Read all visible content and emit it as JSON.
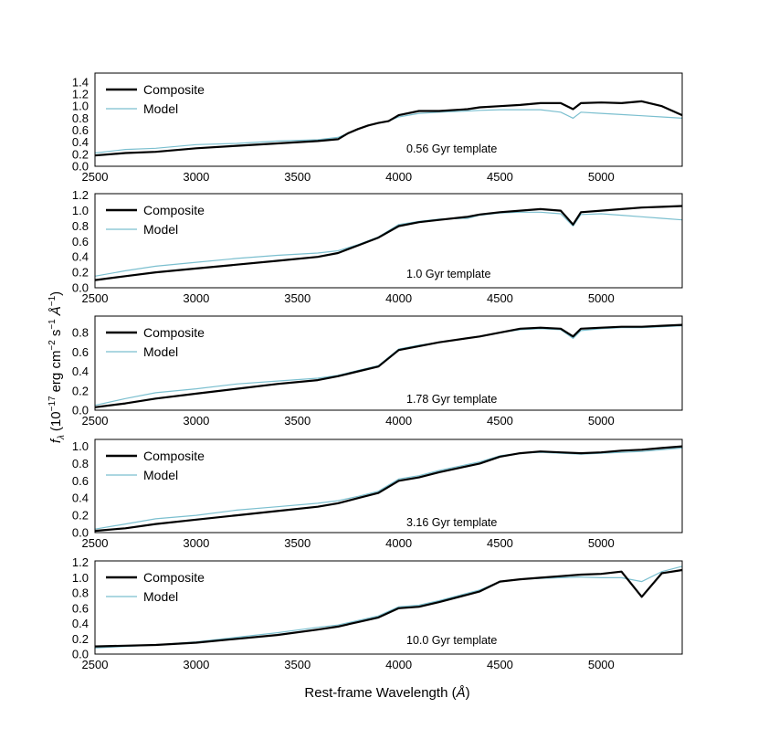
{
  "figure": {
    "xlabel_prefix": "Rest-frame Wavelength (",
    "xlabel_unit": "Å",
    "xlabel_suffix": ")",
    "ylabel_f": "f",
    "ylabel_sub": "λ",
    "ylabel_open": "(10",
    "ylabel_exp1": "−17",
    "ylabel_mid": "erg cm",
    "ylabel_exp2": "−2",
    "ylabel_s": "s",
    "ylabel_exp3": "−1",
    "ylabel_unit": "Å",
    "ylabel_exp4": "−1",
    "ylabel_close": ")"
  },
  "colors": {
    "composite": "#000000",
    "model": "#7bbfcf"
  },
  "chart_data": [
    {
      "type": "line",
      "annotation": "0.56 Gyr template",
      "xlim": [
        2500,
        5400
      ],
      "ylim": [
        0,
        1.55
      ],
      "x_ticks": [
        2500,
        3000,
        3500,
        4000,
        4500,
        5000
      ],
      "y_ticks": [
        "0.0",
        "0.2",
        "0.4",
        "0.6",
        "0.8",
        "1.0",
        "1.2",
        "1.4"
      ],
      "legend": "upper-left",
      "x": [
        2500,
        2650,
        2800,
        3000,
        3200,
        3400,
        3600,
        3700,
        3750,
        3800,
        3850,
        3900,
        3950,
        4000,
        4100,
        4200,
        4340,
        4400,
        4500,
        4600,
        4700,
        4800,
        4861,
        4900,
        5000,
        5100,
        5200,
        5300,
        5400
      ],
      "series": [
        {
          "name": "Composite",
          "values": [
            0.18,
            0.22,
            0.24,
            0.3,
            0.34,
            0.38,
            0.42,
            0.45,
            0.55,
            0.62,
            0.68,
            0.72,
            0.75,
            0.85,
            0.92,
            0.92,
            0.95,
            0.98,
            1.0,
            1.02,
            1.05,
            1.05,
            0.95,
            1.05,
            1.06,
            1.05,
            1.08,
            1.0,
            0.85
          ]
        },
        {
          "name": "Model",
          "values": [
            0.22,
            0.28,
            0.3,
            0.36,
            0.38,
            0.42,
            0.44,
            0.48,
            0.55,
            0.62,
            0.68,
            0.72,
            0.75,
            0.82,
            0.88,
            0.9,
            0.92,
            0.93,
            0.94,
            0.94,
            0.94,
            0.9,
            0.8,
            0.9,
            0.88,
            0.86,
            0.84,
            0.82,
            0.8
          ]
        }
      ]
    },
    {
      "type": "line",
      "annotation": "1.0 Gyr template",
      "xlim": [
        2500,
        5400
      ],
      "ylim": [
        0,
        1.22
      ],
      "x_ticks": [
        2500,
        3000,
        3500,
        4000,
        4500,
        5000
      ],
      "y_ticks": [
        "0.0",
        "0.2",
        "0.4",
        "0.6",
        "0.8",
        "1.0",
        "1.2"
      ],
      "legend": "upper-left",
      "x": [
        2500,
        2650,
        2800,
        3000,
        3200,
        3400,
        3600,
        3700,
        3800,
        3900,
        4000,
        4100,
        4200,
        4340,
        4400,
        4500,
        4600,
        4700,
        4800,
        4861,
        4900,
        5000,
        5100,
        5200,
        5300,
        5400
      ],
      "series": [
        {
          "name": "Composite",
          "values": [
            0.1,
            0.15,
            0.2,
            0.25,
            0.3,
            0.35,
            0.4,
            0.45,
            0.55,
            0.65,
            0.8,
            0.85,
            0.88,
            0.92,
            0.95,
            0.98,
            1.0,
            1.02,
            1.0,
            0.82,
            0.98,
            1.0,
            1.02,
            1.04,
            1.05,
            1.06
          ]
        },
        {
          "name": "Model",
          "values": [
            0.15,
            0.22,
            0.28,
            0.33,
            0.38,
            0.42,
            0.45,
            0.48,
            0.56,
            0.66,
            0.82,
            0.86,
            0.89,
            0.9,
            0.94,
            0.97,
            0.98,
            0.98,
            0.96,
            0.8,
            0.95,
            0.96,
            0.94,
            0.92,
            0.9,
            0.88
          ]
        }
      ]
    },
    {
      "type": "line",
      "annotation": "1.78 Gyr template",
      "xlim": [
        2500,
        5400
      ],
      "ylim": [
        0,
        0.97
      ],
      "x_ticks": [
        2500,
        3000,
        3500,
        4000,
        4500,
        5000
      ],
      "y_ticks": [
        "0.0",
        "0.2",
        "0.4",
        "0.6",
        "0.8"
      ],
      "legend": "upper-left",
      "x": [
        2500,
        2650,
        2800,
        3000,
        3200,
        3400,
        3600,
        3700,
        3800,
        3900,
        4000,
        4100,
        4200,
        4400,
        4500,
        4600,
        4700,
        4800,
        4861,
        4900,
        5000,
        5100,
        5200,
        5300,
        5400
      ],
      "series": [
        {
          "name": "Composite",
          "values": [
            0.03,
            0.07,
            0.12,
            0.17,
            0.22,
            0.27,
            0.31,
            0.35,
            0.4,
            0.45,
            0.62,
            0.66,
            0.7,
            0.76,
            0.8,
            0.84,
            0.85,
            0.84,
            0.76,
            0.84,
            0.85,
            0.86,
            0.86,
            0.87,
            0.88
          ]
        },
        {
          "name": "Model",
          "values": [
            0.05,
            0.12,
            0.18,
            0.22,
            0.27,
            0.3,
            0.33,
            0.36,
            0.41,
            0.46,
            0.63,
            0.67,
            0.7,
            0.76,
            0.8,
            0.83,
            0.84,
            0.83,
            0.74,
            0.82,
            0.84,
            0.85,
            0.85,
            0.86,
            0.87
          ]
        }
      ]
    },
    {
      "type": "line",
      "annotation": "3.16 Gyr template",
      "xlim": [
        2500,
        5400
      ],
      "ylim": [
        0,
        1.08
      ],
      "x_ticks": [
        2500,
        3000,
        3500,
        4000,
        4500,
        5000
      ],
      "y_ticks": [
        "0.0",
        "0.2",
        "0.4",
        "0.6",
        "0.8",
        "1.0"
      ],
      "legend": "upper-left",
      "x": [
        2500,
        2650,
        2800,
        3000,
        3200,
        3400,
        3600,
        3700,
        3800,
        3900,
        4000,
        4100,
        4200,
        4400,
        4500,
        4600,
        4700,
        4800,
        4900,
        5000,
        5100,
        5200,
        5300,
        5400
      ],
      "series": [
        {
          "name": "Composite",
          "values": [
            0.02,
            0.05,
            0.1,
            0.15,
            0.2,
            0.25,
            0.3,
            0.34,
            0.4,
            0.46,
            0.6,
            0.64,
            0.7,
            0.8,
            0.88,
            0.92,
            0.94,
            0.93,
            0.92,
            0.93,
            0.95,
            0.96,
            0.98,
            1.0
          ]
        },
        {
          "name": "Model",
          "values": [
            0.04,
            0.1,
            0.16,
            0.2,
            0.26,
            0.3,
            0.34,
            0.37,
            0.42,
            0.48,
            0.62,
            0.66,
            0.72,
            0.82,
            0.89,
            0.92,
            0.93,
            0.92,
            0.91,
            0.92,
            0.93,
            0.94,
            0.96,
            0.98
          ]
        }
      ]
    },
    {
      "type": "line",
      "annotation": "10.0 Gyr template",
      "xlim": [
        2500,
        5400
      ],
      "ylim": [
        0,
        1.22
      ],
      "x_ticks": [
        2500,
        3000,
        3500,
        4000,
        4500,
        5000
      ],
      "y_ticks": [
        "0.0",
        "0.2",
        "0.4",
        "0.6",
        "0.8",
        "1.0",
        "1.2"
      ],
      "legend": "upper-left",
      "x": [
        2500,
        2650,
        2800,
        3000,
        3200,
        3400,
        3600,
        3700,
        3800,
        3900,
        4000,
        4100,
        4200,
        4400,
        4500,
        4600,
        4700,
        4800,
        4900,
        5000,
        5100,
        5200,
        5300,
        5400
      ],
      "series": [
        {
          "name": "Composite",
          "values": [
            0.1,
            0.11,
            0.12,
            0.15,
            0.2,
            0.25,
            0.32,
            0.36,
            0.42,
            0.48,
            0.6,
            0.62,
            0.68,
            0.82,
            0.95,
            0.98,
            1.0,
            1.02,
            1.04,
            1.05,
            1.08,
            0.75,
            1.06,
            1.1
          ]
        },
        {
          "name": "Model",
          "values": [
            0.08,
            0.1,
            0.12,
            0.16,
            0.22,
            0.28,
            0.35,
            0.38,
            0.44,
            0.5,
            0.62,
            0.64,
            0.7,
            0.84,
            0.95,
            0.98,
            0.99,
            1.0,
            1.01,
            1.0,
            1.0,
            0.95,
            1.08,
            1.15
          ]
        }
      ]
    }
  ]
}
